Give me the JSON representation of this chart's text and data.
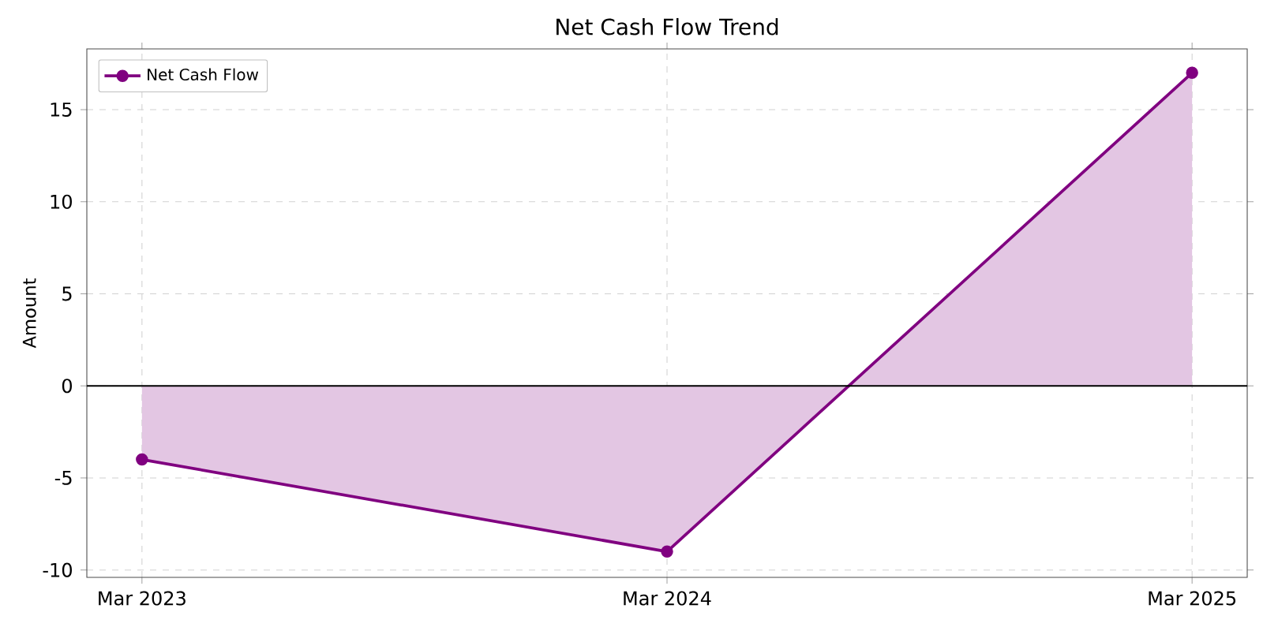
{
  "chart_data": {
    "type": "area",
    "title": "Net Cash Flow Trend",
    "ylabel": "Amount",
    "categories": [
      "Mar 2023",
      "Mar 2024",
      "Mar 2025"
    ],
    "series": [
      {
        "name": "Net Cash Flow",
        "color": "#800080",
        "values": [
          -4,
          -9,
          17
        ]
      }
    ],
    "ylim": [
      -10.4,
      18.3
    ],
    "yticks": [
      -10,
      -5,
      0,
      5,
      10,
      15
    ],
    "ref_lines": [
      {
        "axis": "y",
        "value": 0,
        "color": "#000000"
      }
    ],
    "grid": true,
    "legend": "top left",
    "marker": "circle",
    "line_style": "solid"
  }
}
